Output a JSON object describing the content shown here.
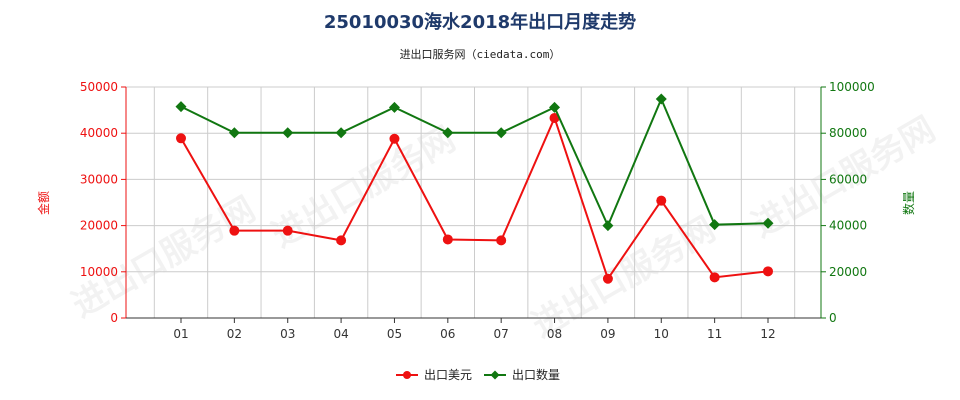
{
  "header": {
    "title": "25010030海水2018年出口月度走势",
    "subtitle": "进出口服务网（ciedata.com）"
  },
  "watermark": "进出口服务网",
  "colors": {
    "amount": "#ee1111",
    "quantity": "#117711",
    "grid": "#cccccc",
    "axis": "#333333"
  },
  "chart_data": {
    "type": "line",
    "categories": [
      "01",
      "02",
      "03",
      "04",
      "05",
      "06",
      "07",
      "08",
      "09",
      "10",
      "11",
      "12"
    ],
    "series": [
      {
        "name": "出口美元",
        "axis": "left",
        "values": [
          38900,
          18900,
          18900,
          16800,
          38800,
          17000,
          16800,
          43300,
          8500,
          25400,
          8800,
          10100
        ]
      },
      {
        "name": "出口数量",
        "axis": "right",
        "values": [
          91500,
          80200,
          80200,
          80200,
          91200,
          80200,
          80200,
          91200,
          40000,
          94800,
          40400,
          41000
        ]
      }
    ],
    "y_left": {
      "label": "金额",
      "ylim": [
        0,
        50000
      ],
      "ticks": [
        "0",
        "10000",
        "20000",
        "30000",
        "40000",
        "50000"
      ]
    },
    "y_right": {
      "label": "数量",
      "ylim": [
        0,
        100000
      ],
      "ticks": [
        "0",
        "20000",
        "40000",
        "60000",
        "80000",
        "100000"
      ]
    },
    "grid": true,
    "legend_position": "bottom"
  }
}
